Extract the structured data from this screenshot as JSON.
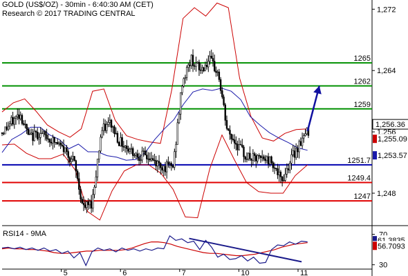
{
  "header": {
    "line1": "GOLD (US$/OZ) - 30min - 6:40:30 AM (CET)",
    "line2": "Research © 2017 TRADING CENTRAL"
  },
  "colors": {
    "candles": "#000000",
    "bollinger": "#cc0000",
    "moving_average": "#1a1aaa",
    "resistance": "#009000",
    "pivot": "#0000b0",
    "support": "#e00000",
    "trendline": "#1a1a8a",
    "arrow": "#1010a0",
    "rsi": "#1a1a8a",
    "rsi_ma": "#cc0000",
    "axis_price": "#000000",
    "label_current": "#000000",
    "label_ma": "#cc0000",
    "label_bb": "#1a1aaa"
  },
  "chart_data": [
    {
      "type": "candlestick",
      "title": "GOLD (US$/OZ) - 30min - 6:40:30 AM (CET)",
      "ylim": [
        1244.4,
        1273.2
      ],
      "y_ticks": [
        1248,
        1256,
        1264,
        1272
      ],
      "y_tick_labels": [
        "1,248",
        "1,256",
        "1,264",
        "1,272"
      ],
      "x_ticks": [
        {
          "label": "5",
          "x": 20
        },
        {
          "label": "6",
          "x": 40
        },
        {
          "label": "7",
          "x": 60
        },
        {
          "label": "10",
          "x": 80
        },
        {
          "label": "11",
          "x": 100
        }
      ],
      "x_range": [
        0,
        125
      ],
      "price_path": [
        1255.9,
        1257.2,
        1258.4,
        1255.2,
        1255.8,
        1255.3,
        1254.5,
        1253.6,
        1252.0,
        1246.0,
        1246.8,
        1256.0,
        1257.2,
        1254.8,
        1253.9,
        1253.0,
        1252.8,
        1252.0,
        1251.4,
        1251.5,
        1262.5,
        1265.5,
        1264.0,
        1265.3,
        1263.6,
        1256.0,
        1254.5,
        1252.9,
        1252.4,
        1252.5,
        1252.2,
        1249.4,
        1252.3,
        1254.5,
        1256.2
      ],
      "bollinger_upper": [
        1258.6,
        1259.8,
        1260.3,
        1258.7,
        1256.9,
        1256.0,
        1255.3,
        1256.4,
        1261.3,
        1261.6,
        1257.5,
        1255.5,
        1255.0,
        1254.7,
        1254.5,
        1261.5,
        1270.8,
        1272.2,
        1271.1,
        1272.8,
        1272.2,
        1263.0,
        1258.0,
        1255.2,
        1254.8,
        1255.8,
        1256.3,
        1256.4
      ],
      "bollinger_lower": [
        1254.3,
        1254.4,
        1253.2,
        1252.5,
        1252.5,
        1253.1,
        1251.0,
        1245.6,
        1244.5,
        1248.3,
        1250.9,
        1251.7,
        1251.7,
        1250.6,
        1248.5,
        1244.9,
        1244.8,
        1251.2,
        1255.6,
        1252.4,
        1249.4,
        1248.2,
        1248.0,
        1248.0,
        1250.3,
        1251.7
      ],
      "moving_average": [
        1253.3,
        1255.0,
        1255.7,
        1256.6,
        1256.6,
        1255.6,
        1255.0,
        1253.8,
        1254.4,
        1253.4,
        1253.4,
        1252.9,
        1252.7,
        1252.3,
        1252.4,
        1253.3,
        1255.0,
        1256.4,
        1257.6,
        1259.6,
        1261.2,
        1261.6,
        1261.4,
        1261.7,
        1261.3,
        1260.2,
        1258.0,
        1256.9,
        1255.9,
        1255.2,
        1254.6,
        1253.9,
        1253.6
      ],
      "levels": [
        {
          "label": "1265",
          "value": 1265.0,
          "kind": "resistance"
        },
        {
          "label": "1262",
          "value": 1262.0,
          "kind": "resistance"
        },
        {
          "label": "1259",
          "value": 1259.0,
          "kind": "resistance"
        },
        {
          "label": "1251.7",
          "value": 1251.7,
          "kind": "pivot"
        },
        {
          "label": "1249.4",
          "value": 1249.4,
          "kind": "support"
        },
        {
          "label": "1247",
          "value": 1247.0,
          "kind": "support"
        }
      ],
      "right_labels": [
        {
          "label": "1,256.36",
          "value": 1256.36,
          "kind": "current"
        },
        {
          "label": "1,255.09",
          "value": 1255.09,
          "kind": "ma"
        },
        {
          "label": "1,253.57",
          "value": 1253.57,
          "kind": "bb"
        }
      ],
      "arrow": {
        "from": [
          103.2,
          1256.1
        ],
        "to": [
          107.2,
          1262.0
        ]
      }
    },
    {
      "type": "line",
      "title": "RSI14 - 9MA",
      "ylim": [
        27,
        76
      ],
      "y_ticks": [
        30,
        70
      ],
      "y_tick_labels": [
        "30",
        "70"
      ],
      "series": [
        {
          "name": "RSI14",
          "values": [
            52,
            53,
            51,
            53,
            50,
            52,
            49,
            52,
            48,
            50,
            45,
            48,
            39,
            46,
            29,
            47,
            52,
            49,
            51,
            47,
            52,
            49,
            51,
            48,
            51,
            49,
            52,
            51,
            68,
            62,
            64,
            59,
            61,
            50,
            62,
            53,
            40,
            44,
            37,
            38,
            42,
            35,
            40,
            32,
            33,
            50,
            56,
            55,
            60,
            57,
            61,
            60
          ]
        },
        {
          "name": "9MA",
          "values": [
            51,
            52,
            51,
            51,
            50,
            50,
            49,
            48,
            46,
            45,
            45,
            46,
            47,
            48,
            48,
            49,
            49,
            49,
            49,
            50,
            52,
            55,
            58,
            60,
            60,
            59,
            57,
            54,
            52,
            50,
            48,
            46,
            45,
            45,
            44,
            43,
            42,
            42,
            43,
            44,
            46,
            48,
            50,
            53,
            55,
            57,
            58,
            59
          ]
        }
      ],
      "trendline": {
        "from": [
          63.2,
          64.6
        ],
        "to": [
          101.2,
          33.9
        ]
      },
      "right_labels": [
        {
          "label": "61.3835",
          "value": 61.3835,
          "kind": "rsi"
        },
        {
          "label": "56.7093",
          "value": 56.7093,
          "kind": "ma"
        }
      ]
    }
  ]
}
